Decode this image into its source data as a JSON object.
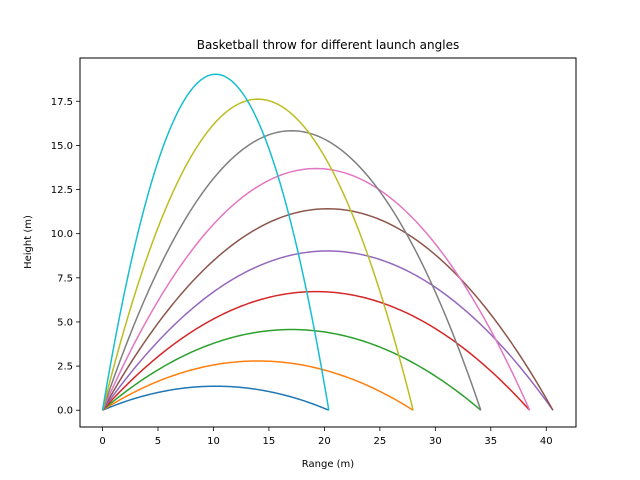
{
  "chart_data": {
    "type": "line",
    "title": "Basketball throw for different launch angles",
    "xlabel": "Range (m)",
    "ylabel": "Height (m)",
    "xlim": [
      -2.03,
      42.68
    ],
    "ylim": [
      -0.95,
      19.95
    ],
    "xticks": [
      0,
      5,
      10,
      15,
      20,
      25,
      30,
      35,
      40
    ],
    "xtick_labels": [
      "0",
      "5",
      "10",
      "15",
      "20",
      "25",
      "30",
      "35",
      "40"
    ],
    "yticks": [
      0.0,
      2.5,
      5.0,
      7.5,
      10.0,
      12.5,
      15.0,
      17.5
    ],
    "ytick_labels": [
      "0.0",
      "2.5",
      "5.0",
      "7.5",
      "10.0",
      "12.5",
      "15.0",
      "17.5"
    ],
    "grid": false,
    "legend": null,
    "series": [
      {
        "range": 20.4,
        "peak": 1.36,
        "color": "#1f77b4"
      },
      {
        "range": 28.0,
        "peak": 2.79,
        "color": "#ff7f0e"
      },
      {
        "range": 34.1,
        "peak": 4.57,
        "color": "#2ca02c"
      },
      {
        "range": 38.5,
        "peak": 6.72,
        "color": "#d62728"
      },
      {
        "range": 40.6,
        "peak": 9.02,
        "color": "#9467bd"
      },
      {
        "range": 40.6,
        "peak": 11.41,
        "color": "#8c564b"
      },
      {
        "range": 38.5,
        "peak": 13.69,
        "color": "#e377c2"
      },
      {
        "range": 34.1,
        "peak": 15.83,
        "color": "#7f7f7f"
      },
      {
        "range": 28.0,
        "peak": 17.62,
        "color": "#bcbd22"
      },
      {
        "range": 20.4,
        "peak": 19.03,
        "color": "#17becf"
      }
    ]
  }
}
